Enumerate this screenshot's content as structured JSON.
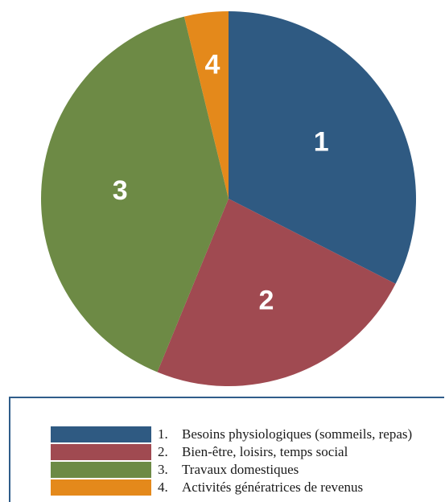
{
  "chart_data": {
    "type": "pie",
    "start_angle_deg": 0,
    "direction": "clockwise",
    "slices": [
      {
        "label": "1",
        "legend_number": "1.",
        "legend_text": "Besoins physiologiques (sommeils, repas)",
        "value": 32.5,
        "color": "#2f5a82"
      },
      {
        "label": "2",
        "legend_number": "2.",
        "legend_text": "Bien-être, loisirs, temps social",
        "value": 23.7,
        "color": "#a04a51"
      },
      {
        "label": "3",
        "legend_number": "3.",
        "legend_text": "Travaux domestiques",
        "value": 40.0,
        "color": "#6d8a45"
      },
      {
        "label": "4",
        "legend_number": "4.",
        "legend_text": "Activités génératrices de revenus",
        "value": 3.8,
        "color": "#e4891b"
      }
    ]
  }
}
